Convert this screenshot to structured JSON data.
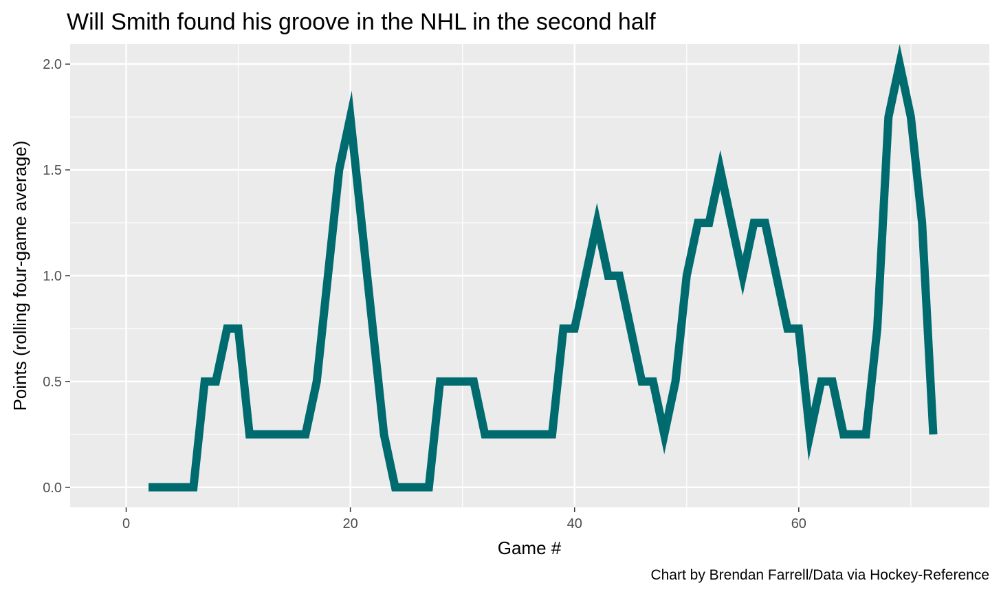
{
  "chart_data": {
    "type": "line",
    "title": "Will Smith found his groove in the NHL in the second half",
    "xlabel": "Game #",
    "ylabel": "Points (rolling four-game average)",
    "caption": "Chart by Brendan Farrell/Data via Hockey-Reference",
    "xlim": [
      -5,
      77
    ],
    "ylim": [
      -0.095,
      2.095
    ],
    "x_ticks": [
      0,
      20,
      40,
      60
    ],
    "x_tick_labels": [
      "0",
      "20",
      "40",
      "60"
    ],
    "y_ticks": [
      0,
      0.5,
      1,
      1.5,
      2
    ],
    "y_tick_labels": [
      "0.0",
      "0.5",
      "1.0",
      "1.5",
      "2.0"
    ],
    "grid": true,
    "line_color": "#006b6f",
    "panel_color": "#ebebeb",
    "series": [
      {
        "name": "Points (rolling four-game average)",
        "x": [
          2,
          3,
          4,
          5,
          6,
          7,
          8,
          9,
          10,
          11,
          12,
          13,
          14,
          15,
          16,
          17,
          18,
          19,
          20,
          21,
          22,
          23,
          24,
          25,
          26,
          27,
          28,
          29,
          30,
          31,
          32,
          33,
          34,
          35,
          36,
          37,
          38,
          39,
          40,
          41,
          42,
          43,
          44,
          45,
          46,
          47,
          48,
          49,
          50,
          51,
          52,
          53,
          54,
          55,
          56,
          57,
          58,
          59,
          60,
          61,
          62,
          63,
          64,
          65,
          66,
          67,
          68,
          69,
          70,
          71,
          72
        ],
        "y": [
          0,
          0,
          0,
          0,
          0,
          0.5,
          0.5,
          0.75,
          0.75,
          0.25,
          0.25,
          0.25,
          0.25,
          0.25,
          0.25,
          0.5,
          1.0,
          1.5,
          1.75,
          1.25,
          0.75,
          0.25,
          0,
          0,
          0,
          0,
          0.5,
          0.5,
          0.5,
          0.5,
          0.25,
          0.25,
          0.25,
          0.25,
          0.25,
          0.25,
          0.25,
          0.75,
          0.75,
          1.0,
          1.25,
          1.0,
          1.0,
          0.75,
          0.5,
          0.5,
          0.25,
          0.5,
          1.0,
          1.25,
          1.25,
          1.5,
          1.25,
          1.0,
          1.25,
          1.25,
          1.0,
          0.75,
          0.75,
          0.25,
          0.5,
          0.5,
          0.25,
          0.25,
          0.25,
          0.75,
          1.75,
          2.0,
          1.75,
          1.25,
          0.25
        ]
      }
    ]
  }
}
